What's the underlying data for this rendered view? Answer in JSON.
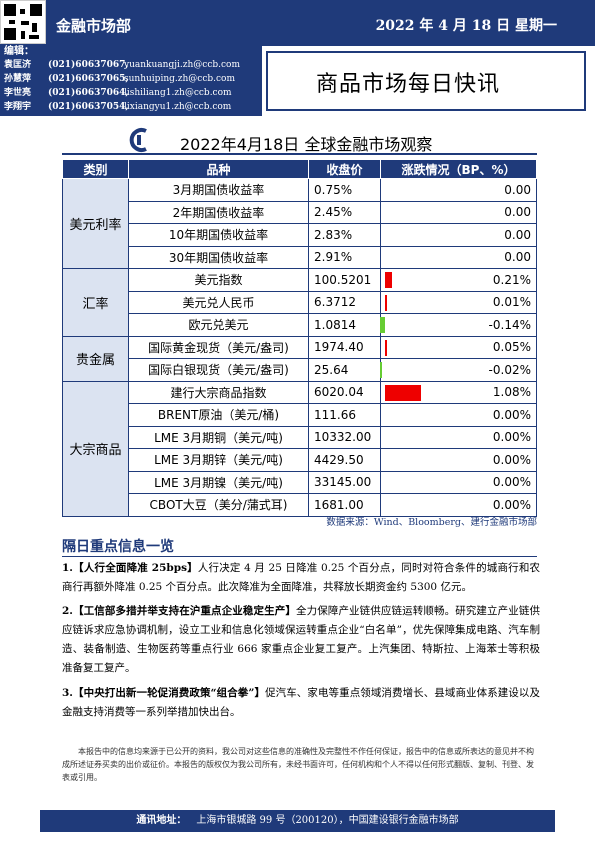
{
  "header": {
    "department": "金融市场部",
    "date": "2022 年 4 月 18 日  星期一"
  },
  "editors": {
    "label": "编辑：",
    "list": [
      {
        "name": "袁匡济",
        "phone": "(021)60637067,",
        "email": "yuankuangji.zh@ccb.com"
      },
      {
        "name": "孙慧萍",
        "phone": "(021)60637065,",
        "email": "sunhuiping.zh@ccb.com"
      },
      {
        "name": "李世亮",
        "phone": "(021)60637064,",
        "email": "lishiliang1.zh@ccb.com"
      },
      {
        "name": "李翔宇",
        "phone": "(021)60637054,",
        "email": "lixiangyu1.zh@ccb.com"
      }
    ]
  },
  "report_title": "商品市场每日快讯",
  "observation_title": "2022年4月18日 全球金融市场观察",
  "table": {
    "headers": [
      "类别",
      "品种",
      "收盘价",
      "涨跌情况（BP、%）"
    ],
    "groups": [
      {
        "category": "美元利率",
        "rows": [
          {
            "item": "3月期国债收益率",
            "value": "0.75%",
            "change": "0.00",
            "dir": 0,
            "mag": 0
          },
          {
            "item": "2年期国债收益率",
            "value": "2.45%",
            "change": "0.00",
            "dir": 0,
            "mag": 0
          },
          {
            "item": "10年期国债收益率",
            "value": "2.83%",
            "change": "0.00",
            "dir": 0,
            "mag": 0
          },
          {
            "item": "30年期国债收益率",
            "value": "2.91%",
            "change": "0.00",
            "dir": 0,
            "mag": 0
          }
        ]
      },
      {
        "category": "汇率",
        "rows": [
          {
            "item": "美元指数",
            "value": "100.5201",
            "change": "0.21%",
            "dir": 1,
            "mag": 0.21
          },
          {
            "item": "美元兑人民币",
            "value": "6.3712",
            "change": "0.01%",
            "dir": 1,
            "mag": 0.01
          },
          {
            "item": "欧元兑美元",
            "value": "1.0814",
            "change": "-0.14%",
            "dir": -1,
            "mag": 0.14
          }
        ]
      },
      {
        "category": "贵金属",
        "rows": [
          {
            "item": "国际黄金现货（美元/盎司)",
            "value": "1974.40",
            "change": "0.05%",
            "dir": 1,
            "mag": 0.05
          },
          {
            "item": "国际白银现货（美元/盎司)",
            "value": "25.64",
            "change": "-0.02%",
            "dir": -1,
            "mag": 0.02
          }
        ]
      },
      {
        "category": "大宗商品",
        "rows": [
          {
            "item": "建行大宗商品指数",
            "value": "6020.04",
            "change": "1.08%",
            "dir": 1,
            "mag": 1.08
          },
          {
            "item": "BRENT原油（美元/桶)",
            "value": "111.66",
            "change": "0.00%",
            "dir": 0,
            "mag": 0
          },
          {
            "item": "LME 3月期铜（美元/吨)",
            "value": "10332.00",
            "change": "0.00%",
            "dir": 0,
            "mag": 0
          },
          {
            "item": "LME 3月期锌（美元/吨)",
            "value": "4429.50",
            "change": "0.00%",
            "dir": 0,
            "mag": 0
          },
          {
            "item": "LME 3月期镍（美元/吨)",
            "value": "33145.00",
            "change": "0.00%",
            "dir": 0,
            "mag": 0
          },
          {
            "item": "CBOT大豆（美分/蒲式耳)",
            "value": "1681.00",
            "change": "0.00%",
            "dir": 0,
            "mag": 0
          }
        ]
      }
    ],
    "colors": {
      "up": "#ee0000",
      "down": "#66cc33"
    }
  },
  "source": "数据来源：Wind、Bloomberg、建行金融市场部",
  "news_section": {
    "title": "隔日重点信息一览",
    "items": [
      {
        "head": "1.【人行全面降准 25bps】",
        "body": "人行决定 4 月 25 日降准 0.25 个百分点，同时对符合条件的城商行和农商行再额外降准 0.25 个百分点。此次降准为全面降准，共释放长期资金约 5300 亿元。"
      },
      {
        "head": "2.【工信部多措并举支持在沪重点企业稳定生产】",
        "body": "全力保障产业链供应链运转顺畅。研究建立产业链供应链诉求应急协调机制，设立工业和信息化领域保运转重点企业“白名单”，优先保障集成电路、汽车制造、装备制造、生物医药等重点行业 666 家重点企业复工复产。上汽集团、特斯拉、上海苯士等积极准备复工复产。"
      },
      {
        "head": "3.【中央打出新一轮促消费政策“组合拳”】",
        "body": "促汽车、家电等重点领域消费增长、县域商业体系建设以及金融支持消费等一系列举措加快出台。"
      }
    ]
  },
  "disclaimer": "本报告中的信息均来源于已公开的资料，我公司对这些信息的准确性及完整性不作任何保证，报告中的信息或所表达的意见并不构成所述证券买卖的出价或征价。本报告的版权仅为我公司所有，未经书面许可，任何机构和个人不得以任何形式翻版、复制、刊登、发表或引用。",
  "footer": {
    "label": "通讯地址：",
    "address": "上海市银城路 99 号（200120），中国建设银行金融市场部"
  }
}
